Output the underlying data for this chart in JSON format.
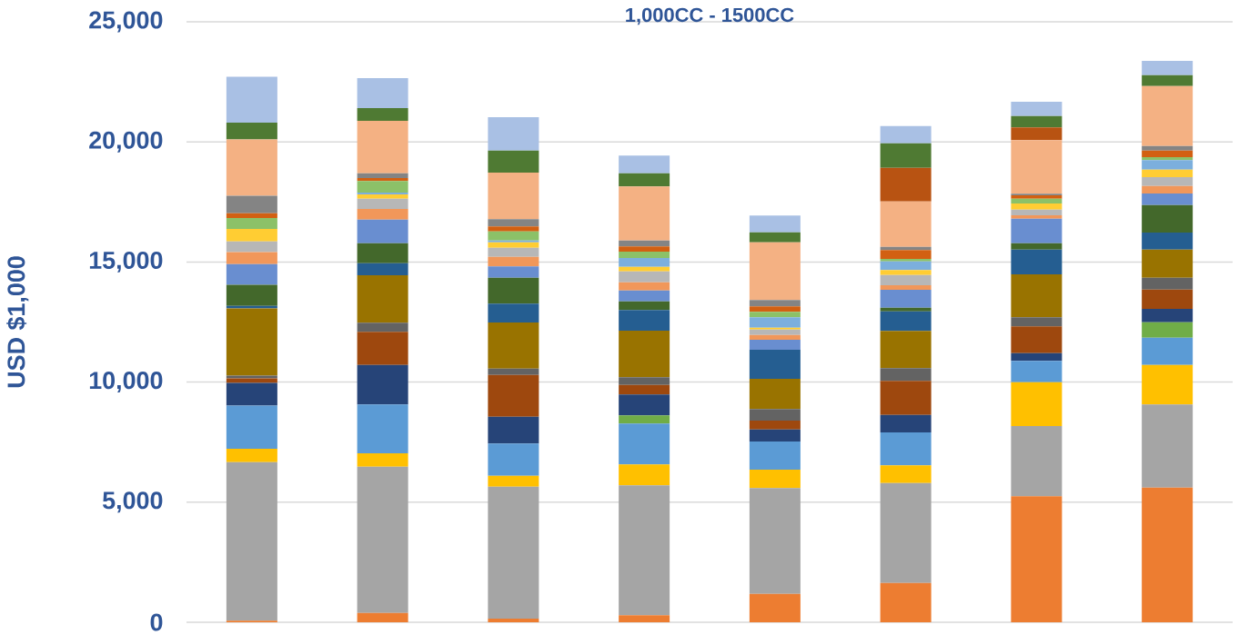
{
  "chart_data": {
    "type": "bar",
    "stacked": true,
    "title": "1,000CC - 1500CC",
    "ylabel": "USD $1,000",
    "categories": [
      null,
      null,
      null,
      null,
      null,
      null,
      null,
      null
    ],
    "ylim": [
      0,
      25000
    ],
    "yticks": [
      0,
      {
        "value": 5000,
        "label": "5,000"
      },
      {
        "value": 10000,
        "label": "10,000"
      },
      {
        "value": 15000,
        "label": "15,000"
      },
      {
        "value": 20000,
        "label": "20,000"
      },
      {
        "value": 25000,
        "label": "25,000"
      }
    ],
    "grid": "y",
    "series": [
      {
        "color": "#ed7d31",
        "values": [
          65,
          390,
          151,
          291,
          1184,
          1638,
          5246,
          5609
        ]
      },
      {
        "color": "#a5a5a5",
        "values": [
          6600,
          6089,
          5496,
          5408,
          4402,
          4160,
          2923,
          3456
        ]
      },
      {
        "color": "#ffc000",
        "values": [
          556,
          556,
          454,
          870,
          768,
          733,
          1827,
          1650
        ]
      },
      {
        "color": "#5b9bd5",
        "values": [
          1803,
          2030,
          1338,
          1702,
          1172,
          1373,
          885,
          1134
        ]
      },
      {
        "color": "#70ad47",
        "values": [
          0,
          0,
          0,
          341,
          0,
          0,
          0,
          643
        ]
      },
      {
        "color": "#264478",
        "values": [
          946,
          1650,
          1120,
          869,
          503,
          730,
          325,
          556
        ]
      },
      {
        "color": "#9e480e",
        "values": [
          189,
          1376,
          1740,
          401,
          367,
          1415,
          1112,
          806
        ]
      },
      {
        "color": "#636363",
        "values": [
          114,
          378,
          265,
          318,
          480,
          529,
          378,
          491
        ]
      },
      {
        "color": "#997300",
        "values": [
          2798,
          1978,
          1917,
          1940,
          1260,
          1551,
          1789,
          1173
        ]
      },
      {
        "color": "#255e91",
        "values": [
          100,
          504,
          782,
          859,
          1210,
          817,
          1033,
          707
        ]
      },
      {
        "color": "#43682b",
        "values": [
          884,
          831,
          1082,
          363,
          0,
          151,
          264,
          1146
        ]
      },
      {
        "color": "#698ed0",
        "values": [
          855,
          984,
          468,
          454,
          416,
          745,
          1022,
          480
        ]
      },
      {
        "color": "#f1975a",
        "values": [
          506,
          442,
          402,
          340,
          200,
          189,
          139,
          314
        ]
      },
      {
        "color": "#b7b7b7",
        "values": [
          439,
          428,
          378,
          454,
          227,
          428,
          239,
          367
        ]
      },
      {
        "color": "#ffcd33",
        "values": [
          518,
          177,
          227,
          189,
          76,
          203,
          253,
          314
        ]
      },
      {
        "color": "#7cafdd",
        "values": [
          0,
          76,
          76,
          367,
          431,
          364,
          0,
          393
        ]
      },
      {
        "color": "#8cc168",
        "values": [
          454,
          480,
          378,
          265,
          227,
          102,
          201,
          125
        ]
      },
      {
        "color": "#d26012",
        "values": [
          200,
          125,
          204,
          215,
          227,
          367,
          139,
          276
        ]
      },
      {
        "color": "#848484",
        "values": [
          733,
          200,
          303,
          250,
          265,
          136,
          63,
          189
        ]
      },
      {
        "color": "#f4b183",
        "values": [
          2346,
          2183,
          1940,
          2246,
          2405,
          1891,
          2232,
          2496
        ]
      },
      {
        "color": "#b85312",
        "values": [
          0,
          0,
          0,
          0,
          0,
          1399,
          530,
          0
        ]
      },
      {
        "color": "#4f7a33",
        "values": [
          692,
          529,
          919,
          552,
          416,
          1022,
          477,
          454
        ]
      },
      {
        "color": "#a9c0e4",
        "values": [
          1918,
          1248,
          1388,
          734,
          696,
          718,
          594,
          594
        ]
      }
    ]
  }
}
